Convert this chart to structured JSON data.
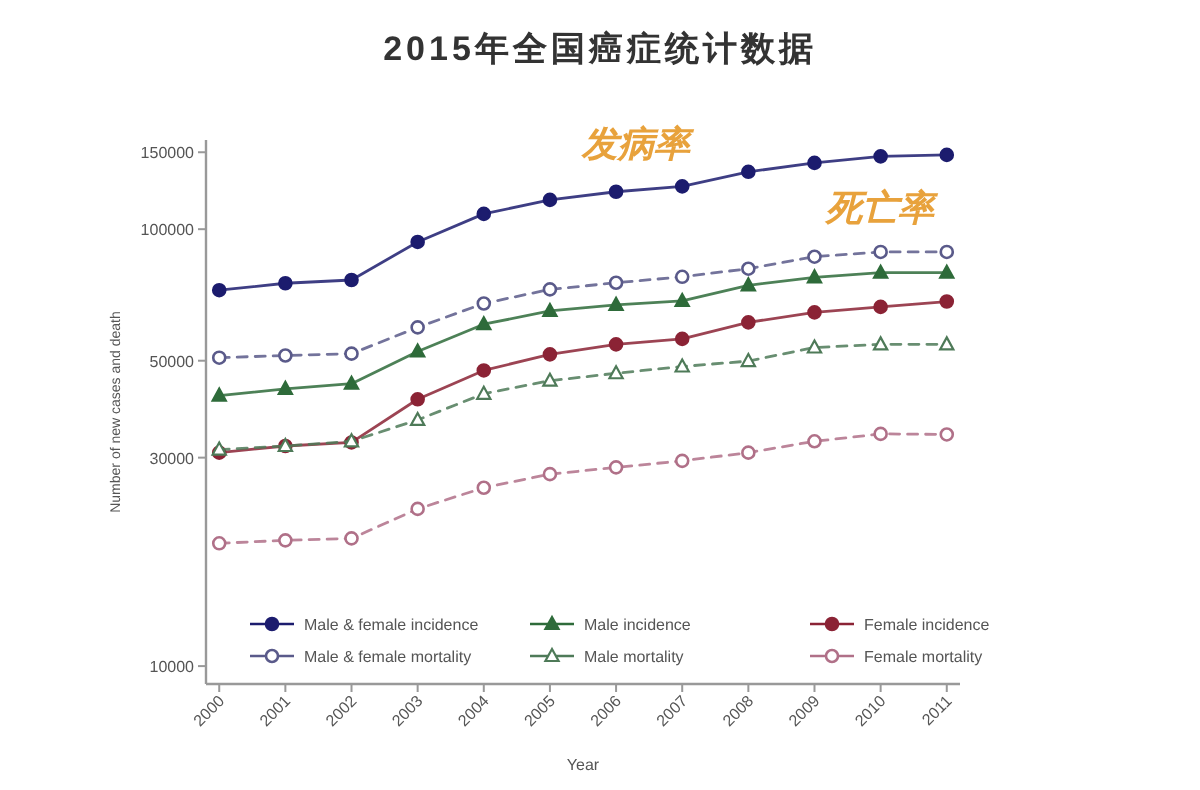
{
  "chart_data": {
    "type": "line",
    "title": "2015年全国癌症统计数据",
    "xlabel": "Year",
    "ylabel": "Number of new cases and death",
    "x": [
      2000,
      2001,
      2002,
      2003,
      2004,
      2005,
      2006,
      2007,
      2008,
      2009,
      2010,
      2011
    ],
    "xlim": [
      1999.8,
      2011.2
    ],
    "xticks": [
      2000,
      2001,
      2002,
      2003,
      2004,
      2005,
      2006,
      2007,
      2008,
      2009,
      2010,
      2011
    ],
    "ylim": [
      9100,
      160000
    ],
    "yticks": [
      10000,
      30000,
      50000,
      100000,
      150000
    ],
    "log": "y",
    "grid": false,
    "legend": "bottom",
    "annotations": [
      "发病率",
      "死亡率"
    ],
    "series": [
      {
        "name": "Male & female incidence",
        "color": "#1c1c6e",
        "marker": "circle",
        "line_style": "solid",
        "values": [
          72500,
          75200,
          76500,
          93500,
          108400,
          116700,
          121800,
          125300,
          135300,
          141800,
          146800,
          147900
        ]
      },
      {
        "name": "Male incidence",
        "color": "#2e6b3a",
        "marker": "triangle",
        "line_style": "solid",
        "values": [
          41600,
          43100,
          44300,
          52500,
          60600,
          65000,
          67100,
          68500,
          74400,
          77600,
          79500,
          79500
        ]
      },
      {
        "name": "Female incidence",
        "color": "#8b2335",
        "marker": "circle",
        "line_style": "solid",
        "values": [
          30800,
          31900,
          32500,
          40800,
          47500,
          51700,
          54500,
          56100,
          61200,
          64500,
          66400,
          68300
        ]
      },
      {
        "name": "Male & female mortality",
        "color": "#5a5a8a",
        "marker": "circle",
        "line_style": "dashed",
        "values": [
          50800,
          51400,
          51900,
          59600,
          67600,
          72800,
          75400,
          77800,
          81200,
          86500,
          88700,
          88700
        ]
      },
      {
        "name": "Male mortality",
        "color": "#4e7a58",
        "marker": "triangle",
        "line_style": "dashed",
        "values": [
          31300,
          31900,
          32700,
          36600,
          42000,
          45000,
          46800,
          48500,
          49900,
          53600,
          54500,
          54500
        ]
      },
      {
        "name": "Female mortality",
        "color": "#b07088",
        "marker": "circle",
        "line_style": "dashed",
        "values": [
          19100,
          19400,
          19600,
          22900,
          25600,
          27500,
          28500,
          29500,
          30800,
          32700,
          34000,
          33900
        ]
      }
    ]
  }
}
